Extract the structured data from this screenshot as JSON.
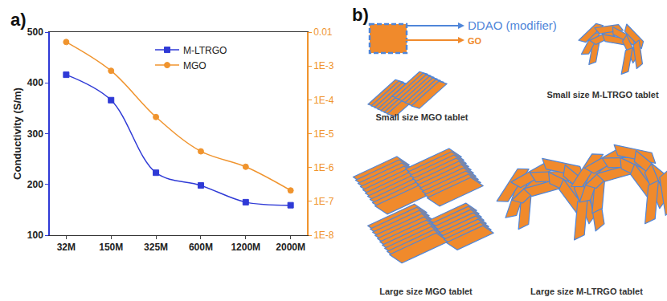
{
  "chart_data": {
    "type": "line",
    "annotations": [
      "a)"
    ],
    "categories": [
      "32M",
      "150M",
      "325M",
      "600M",
      "1200M",
      "2000M"
    ],
    "y_label": "Conductivity (S/m)",
    "ylim": [
      100,
      500
    ],
    "yticks": [
      100,
      200,
      300,
      400,
      500
    ],
    "y2lim": [
      1e-08,
      0.01
    ],
    "y2ticks": [
      {
        "value": 1e-08,
        "label": "1E-8"
      },
      {
        "value": 1e-07,
        "label": "1E-7"
      },
      {
        "value": 1e-06,
        "label": "1E-6"
      },
      {
        "value": 1e-05,
        "label": "1E-5"
      },
      {
        "value": 0.0001,
        "label": "1E-4"
      },
      {
        "value": 0.001,
        "label": "1E-3"
      },
      0.01
    ],
    "log": "y2",
    "grid": false,
    "legend": "upper center",
    "series": [
      {
        "name": "M-LTRGO",
        "color": "#2f3ad6",
        "marker": "square",
        "line_style": "spline",
        "values": [
          416,
          366,
          223,
          198,
          165,
          159
        ]
      },
      {
        "name": "MGO",
        "color": "#f0942e",
        "marker": "circle",
        "line_style": "spline",
        "axis": "y2",
        "values": [
          0.0051,
          0.00072,
          3.1e-05,
          3e-06,
          1.05e-06,
          2.1e-07
        ]
      }
    ]
  },
  "diagram": {
    "label": "b)",
    "key": {
      "modifier": "DDAO (modifier)",
      "sheet": "GO"
    },
    "tablets": [
      "Small size MGO tablet",
      "Small size M-LTRGO tablet",
      "Large size MGO tablet",
      "Large size M-LTRGO tablet"
    ]
  }
}
